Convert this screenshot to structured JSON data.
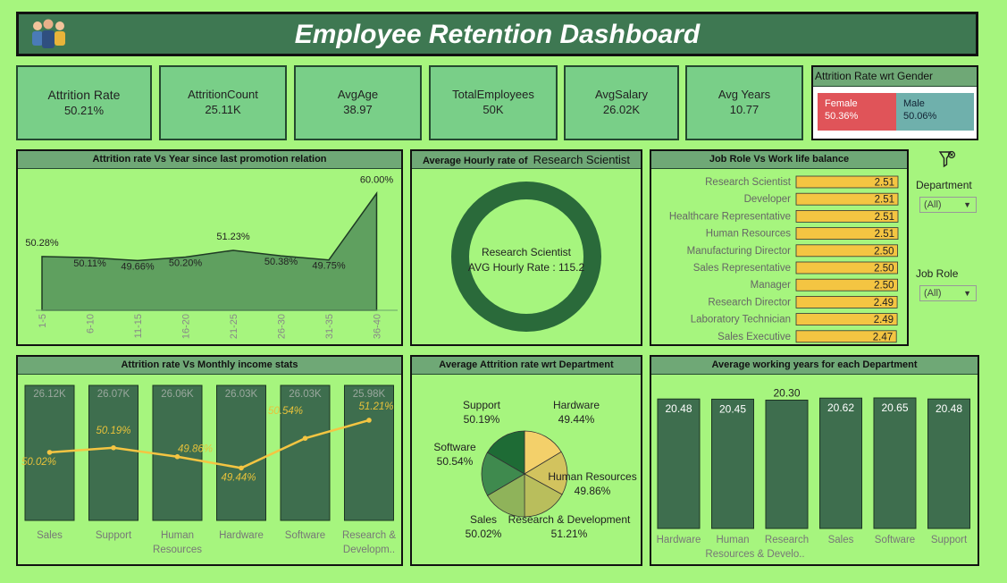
{
  "header": {
    "title": "Employee Retention Dashboard"
  },
  "kpis": [
    {
      "label": "Attrition Rate",
      "value": "50.21%"
    },
    {
      "label": "AttritionCount",
      "value": "25.11K"
    },
    {
      "label": "AvgAge",
      "value": "38.97"
    },
    {
      "label": "TotalEmployees",
      "value": "50K"
    },
    {
      "label": "AvgSalary",
      "value": "26.02K"
    },
    {
      "label": "Avg Years",
      "value": "10.77"
    }
  ],
  "gender": {
    "title": "Attrition Rate wrt Gender",
    "female": {
      "label": "Female",
      "value": "50.36%",
      "color": "#e05459"
    },
    "male": {
      "label": "Male",
      "value": "50.06%",
      "color": "#6fb0ac"
    }
  },
  "filters": {
    "department": {
      "label": "Department",
      "value": "(All)"
    },
    "job_role": {
      "label": "Job Role",
      "value": "(All)"
    }
  },
  "colors": {
    "dark_green": "#3e6e4e",
    "bar_yellow": "#f4c542",
    "line_yellow": "#f4c542",
    "area_fill": "#5fa05f"
  },
  "chart_data": [
    {
      "type": "area",
      "title": "Attrition rate Vs Year since last promotion relation",
      "categories": [
        "1-5",
        "6-10",
        "11-15",
        "16-20",
        "21-25",
        "26-30",
        "31-35",
        "36-40"
      ],
      "values": [
        50.28,
        50.11,
        49.66,
        50.2,
        51.23,
        50.38,
        49.75,
        60.0
      ],
      "labels": [
        "50.28%",
        "50.11%",
        "49.66%",
        "50.20%",
        "51.23%",
        "50.38%",
        "49.75%",
        "60.00%"
      ],
      "ylim": [
        42,
        61
      ]
    },
    {
      "type": "pie",
      "title_prefix": "Average Hourly rate of",
      "title_role": "Research Scientist",
      "center_line1": "Research Scientist",
      "center_line2": "AVG Hourly Rate : 115.2"
    },
    {
      "type": "bar",
      "title": "Job Role Vs Work life balance",
      "categories": [
        "Research Scientist",
        "Developer",
        "Healthcare Representative",
        "Human Resources",
        "Manufacturing Director",
        "Sales Representative",
        "Manager",
        "Research Director",
        "Laboratory Technician",
        "Sales Executive"
      ],
      "values": [
        2.51,
        2.51,
        2.51,
        2.51,
        2.5,
        2.5,
        2.5,
        2.49,
        2.49,
        2.47
      ],
      "labels": [
        "2.51",
        "2.51",
        "2.51",
        "2.51",
        "2.50",
        "2.50",
        "2.50",
        "2.49",
        "2.49",
        "2.47"
      ]
    },
    {
      "type": "bar",
      "title": "Attrition rate Vs Monthly income stats",
      "categories": [
        "Sales",
        "Support",
        "Human Resources",
        "Hardware",
        "Software",
        "Research & Developm.."
      ],
      "category_lines": [
        [
          "Sales"
        ],
        [
          "Support"
        ],
        [
          "Human",
          "Resources"
        ],
        [
          "Hardware"
        ],
        [
          "Software"
        ],
        [
          "Research &",
          "Developm.."
        ]
      ],
      "bar_values": [
        26.12,
        26.07,
        26.06,
        26.03,
        26.03,
        25.98
      ],
      "bar_labels": [
        "26.12K",
        "26.07K",
        "26.06K",
        "26.03K",
        "26.03K",
        "25.98K"
      ],
      "line_values": [
        50.02,
        50.19,
        49.86,
        49.44,
        50.54,
        51.21
      ],
      "line_labels": [
        "50.02%",
        "50.19%",
        "49.86%",
        "49.44%",
        "50.54%",
        "51.21%"
      ],
      "line_ylim": [
        47.5,
        52.5
      ]
    },
    {
      "type": "pie",
      "title": "Average Attrition rate wrt Department",
      "slices": [
        {
          "name": "Hardware",
          "value": 49.44,
          "label": "49.44%",
          "color": "#f3d06a"
        },
        {
          "name": "Human Resources",
          "value": 49.86,
          "label": "49.86%",
          "color": "#d2c35e"
        },
        {
          "name": "Research & Development",
          "value": 51.21,
          "label": "51.21%",
          "color": "#b9be5c"
        },
        {
          "name": "Sales",
          "value": 50.02,
          "label": "50.02%",
          "color": "#8fb35a"
        },
        {
          "name": "Software",
          "value": 50.54,
          "label": "50.54%",
          "color": "#3f8a4e"
        },
        {
          "name": "Support",
          "value": 50.19,
          "label": "50.19%",
          "color": "#1e6b35"
        }
      ]
    },
    {
      "type": "bar",
      "title": "Average working years for each Department",
      "categories": [
        "Hardware",
        "Human Resources & Develo..",
        "Research",
        "Sales",
        "Software",
        "Support"
      ],
      "category_lines": [
        [
          "Hardware"
        ],
        [
          "Human",
          "Resources & Develo.."
        ],
        [
          "Research"
        ],
        [
          "Sales"
        ],
        [
          "Software"
        ],
        [
          "Support"
        ]
      ],
      "values": [
        20.48,
        20.45,
        20.3,
        20.62,
        20.65,
        20.48
      ],
      "labels": [
        "20.48",
        "20.45",
        "20.30",
        "20.62",
        "20.65",
        "20.48"
      ],
      "ylim": [
        0,
        21.5
      ]
    }
  ]
}
